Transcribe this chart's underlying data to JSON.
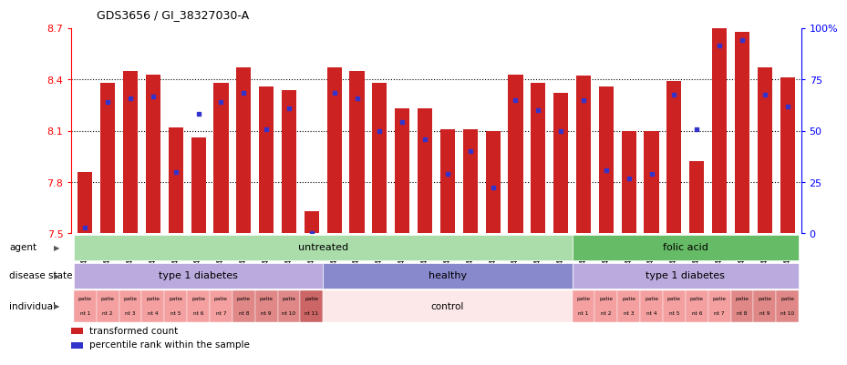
{
  "title": "GDS3656 / GI_38327030-A",
  "bar_labels": [
    "GSM440157",
    "GSM440158",
    "GSM440159",
    "GSM440160",
    "GSM440161",
    "GSM440162",
    "GSM440163",
    "GSM440164",
    "GSM440165",
    "GSM440166",
    "GSM440167",
    "GSM440178",
    "GSM440179",
    "GSM440180",
    "GSM440181",
    "GSM440182",
    "GSM440183",
    "GSM440184",
    "GSM440185",
    "GSM440186",
    "GSM440187",
    "GSM440188",
    "GSM440168",
    "GSM440169",
    "GSM440170",
    "GSM440171",
    "GSM440172",
    "GSM440173",
    "GSM440174",
    "GSM440175",
    "GSM440176",
    "GSM440177"
  ],
  "bar_values": [
    7.86,
    8.38,
    8.45,
    8.43,
    8.12,
    8.06,
    8.38,
    8.47,
    8.36,
    8.34,
    7.63,
    8.47,
    8.45,
    8.38,
    8.23,
    8.23,
    8.11,
    8.11,
    8.1,
    8.43,
    8.38,
    8.32,
    8.42,
    8.36,
    8.1,
    8.1,
    8.39,
    7.92,
    8.71,
    8.68,
    8.47,
    8.41
  ],
  "percentile_values": [
    7.535,
    8.27,
    8.29,
    8.3,
    7.86,
    8.2,
    8.27,
    8.32,
    8.11,
    8.23,
    7.5,
    8.32,
    8.29,
    8.1,
    8.15,
    8.05,
    7.85,
    7.98,
    7.77,
    8.28,
    8.22,
    8.1,
    8.28,
    7.87,
    7.82,
    7.85,
    8.31,
    8.11,
    8.6,
    8.63,
    8.31,
    8.24
  ],
  "ylim_left": [
    7.5,
    8.7
  ],
  "ylim_right": [
    0,
    100
  ],
  "yticks_left": [
    7.5,
    7.8,
    8.1,
    8.4,
    8.7
  ],
  "yticks_right": [
    0,
    25,
    50,
    75,
    100
  ],
  "bar_color": "#cc2222",
  "dot_color": "#3333cc",
  "bg_color": "#ffffff",
  "agent_groups": [
    {
      "label": "untreated",
      "start": 0,
      "end": 22,
      "color": "#aaddaa"
    },
    {
      "label": "folic acid",
      "start": 22,
      "end": 32,
      "color": "#66bb66"
    }
  ],
  "disease_groups": [
    {
      "label": "type 1 diabetes",
      "start": 0,
      "end": 11,
      "color": "#bbaadd"
    },
    {
      "label": "healthy",
      "start": 11,
      "end": 22,
      "color": "#8888cc"
    },
    {
      "label": "type 1 diabetes",
      "start": 22,
      "end": 32,
      "color": "#bbaadd"
    }
  ],
  "individual_groups": [
    {
      "label": "patie\nnt 1",
      "start": 0,
      "end": 1,
      "color": "#f4a0a0"
    },
    {
      "label": "patie\nnt 2",
      "start": 1,
      "end": 2,
      "color": "#f4a0a0"
    },
    {
      "label": "patie\nnt 3",
      "start": 2,
      "end": 3,
      "color": "#f4a0a0"
    },
    {
      "label": "patie\nnt 4",
      "start": 3,
      "end": 4,
      "color": "#f4a0a0"
    },
    {
      "label": "patie\nnt 5",
      "start": 4,
      "end": 5,
      "color": "#f4a0a0"
    },
    {
      "label": "patie\nnt 6",
      "start": 5,
      "end": 6,
      "color": "#f4a0a0"
    },
    {
      "label": "patie\nnt 7",
      "start": 6,
      "end": 7,
      "color": "#f4a0a0"
    },
    {
      "label": "patie\nnt 8",
      "start": 7,
      "end": 8,
      "color": "#e08888"
    },
    {
      "label": "patie\nnt 9",
      "start": 8,
      "end": 9,
      "color": "#e08888"
    },
    {
      "label": "patie\nnt 10",
      "start": 9,
      "end": 10,
      "color": "#e08888"
    },
    {
      "label": "patie\nnt 11",
      "start": 10,
      "end": 11,
      "color": "#cc6666"
    },
    {
      "label": "control",
      "start": 11,
      "end": 22,
      "color": "#fce8e8"
    },
    {
      "label": "patie\nnt 1",
      "start": 22,
      "end": 23,
      "color": "#f4a0a0"
    },
    {
      "label": "patie\nnt 2",
      "start": 23,
      "end": 24,
      "color": "#f4a0a0"
    },
    {
      "label": "patie\nnt 3",
      "start": 24,
      "end": 25,
      "color": "#f4a0a0"
    },
    {
      "label": "patie\nnt 4",
      "start": 25,
      "end": 26,
      "color": "#f4a0a0"
    },
    {
      "label": "patie\nnt 5",
      "start": 26,
      "end": 27,
      "color": "#f4a0a0"
    },
    {
      "label": "patie\nnt 6",
      "start": 27,
      "end": 28,
      "color": "#f4a0a0"
    },
    {
      "label": "patie\nnt 7",
      "start": 28,
      "end": 29,
      "color": "#f4a0a0"
    },
    {
      "label": "patie\nnt 8",
      "start": 29,
      "end": 30,
      "color": "#e08888"
    },
    {
      "label": "patie\nnt 9",
      "start": 30,
      "end": 31,
      "color": "#e08888"
    },
    {
      "label": "patie\nnt 10",
      "start": 31,
      "end": 32,
      "color": "#e08888"
    }
  ],
  "legend_items": [
    {
      "label": "transformed count",
      "color": "#cc2222"
    },
    {
      "label": "percentile rank within the sample",
      "color": "#3333cc"
    }
  ],
  "row_labels": [
    "agent",
    "disease state",
    "individual"
  ]
}
